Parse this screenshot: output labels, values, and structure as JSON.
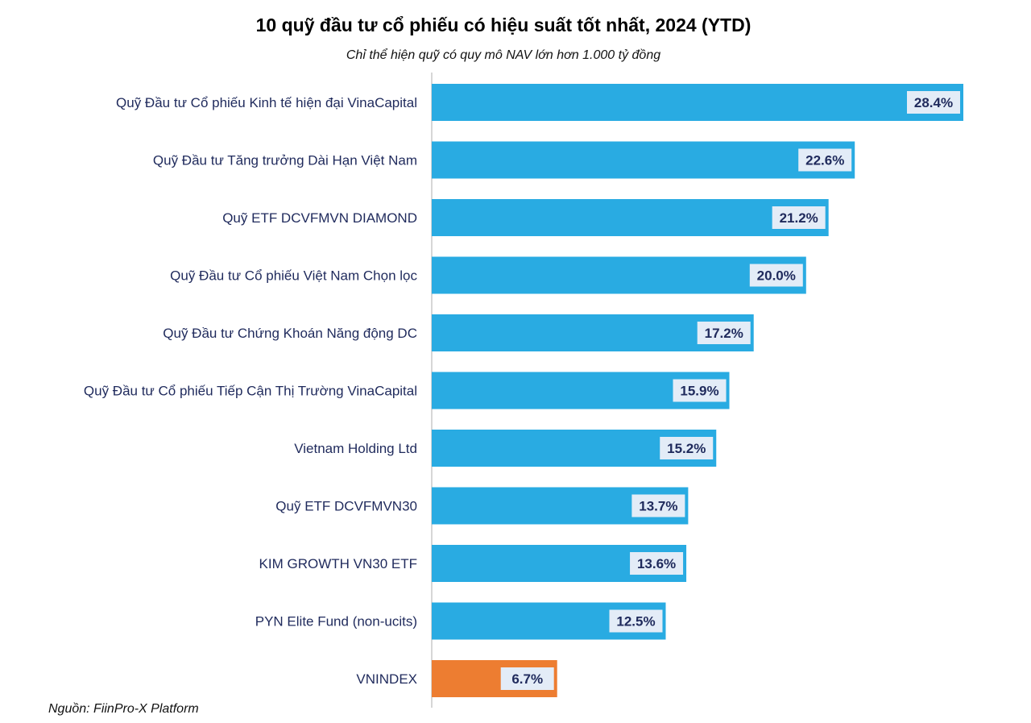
{
  "chart_data": {
    "type": "bar",
    "orientation": "horizontal",
    "title": "10 quỹ đầu tư cổ phiếu có hiệu suất tốt nhất, 2024 (YTD)",
    "subtitle": "Chỉ thể hiện quỹ có quy mô NAV lớn hơn 1.000 tỷ đồng",
    "source": "Nguồn: FiinPro-X Platform",
    "categories": [
      "Quỹ Đầu tư Cổ phiếu Kinh tế hiện đại VinaCapital",
      "Quỹ Đầu tư Tăng trưởng Dài Hạn Việt Nam",
      "Quỹ ETF DCVFMVN DIAMOND",
      "Quỹ Đầu tư Cổ phiếu Việt Nam Chọn lọc",
      "Quỹ Đầu tư Chứng Khoán Năng động DC",
      "Quỹ Đầu tư Cổ phiếu Tiếp Cận Thị Trường VinaCapital",
      "Vietnam Holding Ltd",
      "Quỹ ETF DCVFMVN30",
      "KIM GROWTH VN30 ETF",
      "PYN Elite Fund (non-ucits)",
      "VNINDEX"
    ],
    "values": [
      28.4,
      22.6,
      21.2,
      20.0,
      17.2,
      15.9,
      15.2,
      13.7,
      13.6,
      12.5,
      6.7
    ],
    "labels": [
      "28.4%",
      "22.6%",
      "21.2%",
      "20.0%",
      "17.2%",
      "15.9%",
      "15.2%",
      "13.7%",
      "13.6%",
      "12.5%",
      "6.7%"
    ],
    "xlim": [
      0,
      28.4
    ],
    "grid": false,
    "colors": {
      "fund": "#29abe2",
      "index": "#ed7d31",
      "label_bg": "#e3ecf7",
      "text": "#1f2a5c"
    }
  }
}
